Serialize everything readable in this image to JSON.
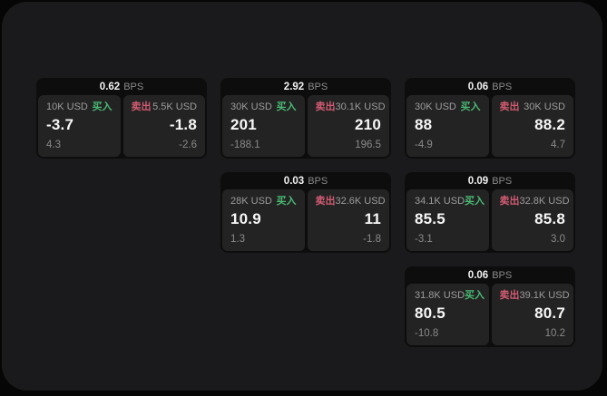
{
  "labels": {
    "buy": "买入",
    "sell": "卖出",
    "bps_unit": "BPS"
  },
  "colors": {
    "buy": "#4aba74",
    "sell": "#d25b72",
    "panel_bg": "#1a1a1c",
    "card_bg": "#0d0d0d",
    "subcard_bg": "#232323"
  },
  "cards": [
    {
      "row": 0,
      "col": 0,
      "bps": "0.62",
      "buy": {
        "amount": "10K USD",
        "value": "-3.7",
        "delta": "4.3"
      },
      "sell": {
        "amount": "5.5K USD",
        "value": "-1.8",
        "delta": "-2.6"
      }
    },
    {
      "row": 0,
      "col": 1,
      "bps": "2.92",
      "buy": {
        "amount": "30K USD",
        "value": "201",
        "delta": "-188.1"
      },
      "sell": {
        "amount": "30.1K USD",
        "value": "210",
        "delta": "196.5"
      }
    },
    {
      "row": 0,
      "col": 2,
      "bps": "0.06",
      "buy": {
        "amount": "30K USD",
        "value": "88",
        "delta": "-4.9"
      },
      "sell": {
        "amount": "30K USD",
        "value": "88.2",
        "delta": "4.7"
      }
    },
    {
      "row": 1,
      "col": 1,
      "bps": "0.03",
      "buy": {
        "amount": "28K USD",
        "value": "10.9",
        "delta": "1.3"
      },
      "sell": {
        "amount": "32.6K USD",
        "value": "11",
        "delta": "-1.8"
      }
    },
    {
      "row": 1,
      "col": 2,
      "bps": "0.09",
      "buy": {
        "amount": "34.1K USD",
        "value": "85.5",
        "delta": "-3.1"
      },
      "sell": {
        "amount": "32.8K USD",
        "value": "85.8",
        "delta": "3.0"
      }
    },
    {
      "row": 2,
      "col": 2,
      "bps": "0.06",
      "buy": {
        "amount": "31.8K USD",
        "value": "80.5",
        "delta": "-10.8"
      },
      "sell": {
        "amount": "39.1K USD",
        "value": "80.7",
        "delta": "10.2"
      }
    }
  ]
}
